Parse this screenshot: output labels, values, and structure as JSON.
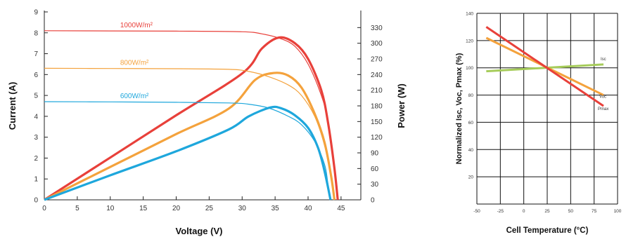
{
  "chart_data": [
    {
      "type": "line",
      "xlabel": "Voltage (V)",
      "ylabel": "Current (A)",
      "y2label": "Power (W)",
      "xlim": [
        0,
        48
      ],
      "ylim": [
        0,
        9
      ],
      "y2lim": [
        0,
        360
      ],
      "x_ticks": [
        0,
        5,
        10,
        15,
        20,
        25,
        30,
        35,
        40,
        45
      ],
      "y_ticks": [
        0,
        1,
        2,
        3,
        4,
        5,
        6,
        7,
        8,
        9
      ],
      "y2_ticks": [
        0,
        30,
        60,
        90,
        120,
        150,
        180,
        210,
        240,
        270,
        300,
        330
      ],
      "grid": false,
      "series": [
        {
          "name": "1000W/m²",
          "color": "#e8403a",
          "iv": [
            [
              0,
              8.1
            ],
            [
              10,
              8.09
            ],
            [
              20,
              8.08
            ],
            [
              30,
              8.05
            ],
            [
              33,
              7.95
            ],
            [
              36,
              7.7
            ],
            [
              38,
              7.35
            ],
            [
              40,
              6.5
            ],
            [
              42,
              5.0
            ],
            [
              43,
              3.8
            ],
            [
              44,
              1.5
            ],
            [
              44.5,
              0
            ]
          ],
          "pv": [
            [
              0,
              0
            ],
            [
              10,
              81
            ],
            [
              20,
              162
            ],
            [
              30,
              242
            ],
            [
              33,
              290
            ],
            [
              35.6,
              311
            ],
            [
              38,
              300
            ],
            [
              40,
              270
            ],
            [
              42,
              210
            ],
            [
              43,
              150
            ],
            [
              44,
              60
            ],
            [
              44.5,
              0
            ]
          ]
        },
        {
          "name": "800W/m²",
          "color": "#f4a23c",
          "iv": [
            [
              0,
              6.3
            ],
            [
              10,
              6.29
            ],
            [
              20,
              6.28
            ],
            [
              28,
              6.25
            ],
            [
              31,
              6.15
            ],
            [
              34,
              5.9
            ],
            [
              37,
              5.5
            ],
            [
              39,
              5.0
            ],
            [
              41,
              4.0
            ],
            [
              42.5,
              2.6
            ],
            [
              43.5,
              1.0
            ],
            [
              44,
              0
            ]
          ],
          "pv": [
            [
              0,
              0
            ],
            [
              10,
              63
            ],
            [
              20,
              126
            ],
            [
              28,
              175
            ],
            [
              32,
              230
            ],
            [
              34.8,
              243
            ],
            [
              37,
              238
            ],
            [
              39,
              215
            ],
            [
              41,
              165
            ],
            [
              42.5,
              110
            ],
            [
              43.5,
              45
            ],
            [
              44,
              0
            ]
          ]
        },
        {
          "name": "600W/m²",
          "color": "#1ea7dc",
          "iv": [
            [
              0,
              4.7
            ],
            [
              10,
              4.69
            ],
            [
              20,
              4.67
            ],
            [
              28,
              4.64
            ],
            [
              31,
              4.58
            ],
            [
              34,
              4.4
            ],
            [
              37,
              4.0
            ],
            [
              39,
              3.6
            ],
            [
              41,
              2.8
            ],
            [
              42.5,
              1.7
            ],
            [
              43,
              0.8
            ],
            [
              43.4,
              0
            ]
          ],
          "pv": [
            [
              0,
              0
            ],
            [
              10,
              47
            ],
            [
              20,
              93
            ],
            [
              28,
              135
            ],
            [
              31,
              160
            ],
            [
              34.3,
              177
            ],
            [
              36,
              175
            ],
            [
              38,
              162
            ],
            [
              40,
              138
            ],
            [
              41.5,
              100
            ],
            [
              42.5,
              55
            ],
            [
              43.4,
              0
            ]
          ]
        }
      ]
    },
    {
      "type": "line",
      "xlabel": "Cell Temperature (°C)",
      "ylabel": "Normalized Isc, Voc, Pmax (%)",
      "xlim": [
        -50,
        100
      ],
      "ylim": [
        0,
        140
      ],
      "x_ticks": [
        -50,
        -25,
        0,
        25,
        50,
        75,
        100
      ],
      "y_ticks": [
        20,
        40,
        60,
        80,
        100,
        120,
        140
      ],
      "grid": true,
      "series": [
        {
          "name": "Isc",
          "color": "#a6cc5a",
          "points": [
            [
              -40,
              97.5
            ],
            [
              85,
              102.5
            ]
          ]
        },
        {
          "name": "Voc",
          "color": "#f4a23c",
          "points": [
            [
              -40,
              122
            ],
            [
              85,
              80
            ]
          ]
        },
        {
          "name": "Pmax",
          "color": "#e8403a",
          "points": [
            [
              -40,
              130
            ],
            [
              85,
              72
            ]
          ]
        }
      ]
    }
  ],
  "labels": {
    "left_xlabel": "Voltage (V)",
    "left_ylabel": "Current (A)",
    "left_y2label": "Power (W)",
    "right_xlabel": "Cell Temperature (°C)",
    "right_ylabel": "Normalized Isc, Voc, Pmax (%)"
  }
}
